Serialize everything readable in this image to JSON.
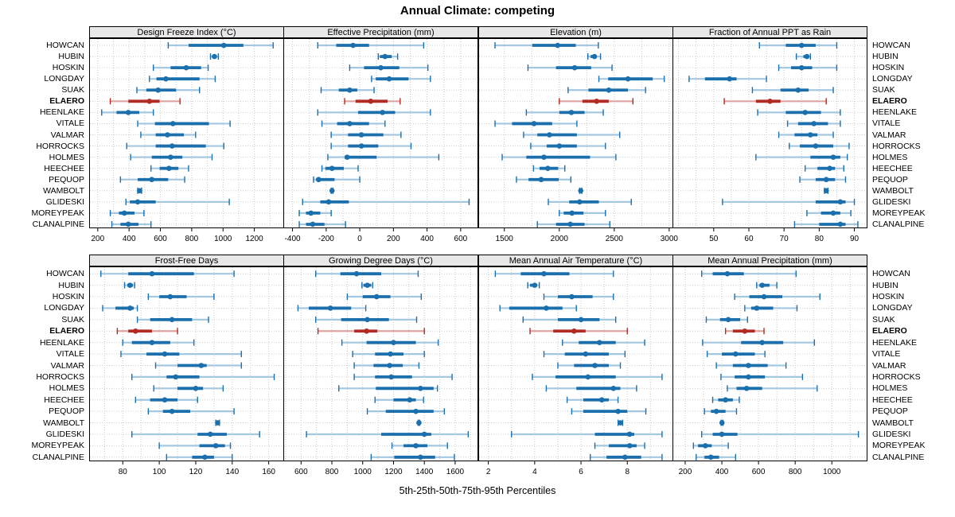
{
  "title": "Annual Climate: competing",
  "caption": "5th-25th-50th-75th-95th Percentiles",
  "percentile_labels": [
    "5th",
    "25th",
    "50th",
    "75th",
    "95th"
  ],
  "highlight_site": "ELAERO",
  "sites": [
    "HOWCAN",
    "HUBIN",
    "HOSKIN",
    "LONGDAY",
    "SUAK",
    "ELAERO",
    "HEENLAKE",
    "VITALE",
    "VALMAR",
    "HORROCKS",
    "HOLMES",
    "HEECHEE",
    "PEQUOP",
    "WAMBOLT",
    "GLIDESKI",
    "MOREYPEAK",
    "CLANALPINE"
  ],
  "colors": {
    "blue": "#1b6fad",
    "blue_light": "#a5c8e1",
    "red": "#b22a24",
    "red_light": "#dfa4a0",
    "strip_bg": "#e8e8e8",
    "grid": "#c8c8c8",
    "row_line": "#cfcfcf",
    "border": "#000000"
  },
  "chart_data": [
    {
      "type": "interval-dotplot",
      "title": "Design Freeze Index (°C)",
      "row": 0,
      "col": 0,
      "xlim": [
        150,
        1385
      ],
      "ticks": [
        200,
        400,
        600,
        800,
        1000,
        1200
      ],
      "minor_step": 100,
      "values": [
        [
          650,
          780,
          1005,
          1130,
          1320
        ],
        [
          920,
          930,
          945,
          960,
          970
        ],
        [
          555,
          665,
          765,
          860,
          905
        ],
        [
          530,
          575,
          635,
          850,
          950
        ],
        [
          450,
          510,
          585,
          700,
          850
        ],
        [
          280,
          395,
          530,
          595,
          725
        ],
        [
          225,
          320,
          395,
          465,
          555
        ],
        [
          455,
          565,
          680,
          910,
          1045
        ],
        [
          475,
          570,
          645,
          750,
          825
        ],
        [
          385,
          570,
          675,
          890,
          1005
        ],
        [
          410,
          545,
          665,
          740,
          930
        ],
        [
          540,
          595,
          655,
          715,
          780
        ],
        [
          345,
          455,
          545,
          650,
          755
        ],
        [
          455,
          462,
          467,
          472,
          480
        ],
        [
          380,
          405,
          455,
          570,
          1040
        ],
        [
          280,
          335,
          370,
          435,
          495
        ],
        [
          290,
          345,
          395,
          460,
          540
        ]
      ]
    },
    {
      "type": "interval-dotplot",
      "title": "Effective Precipitation (mm)",
      "row": 0,
      "col": 1,
      "xlim": [
        -450,
        700
      ],
      "ticks": [
        -400,
        -200,
        0,
        200,
        400,
        600
      ],
      "minor_step": 100,
      "values": [
        [
          -250,
          -140,
          -40,
          55,
          380
        ],
        [
          110,
          120,
          150,
          190,
          225
        ],
        [
          -60,
          25,
          125,
          235,
          405
        ],
        [
          70,
          95,
          175,
          290,
          420
        ],
        [
          -230,
          -125,
          -60,
          -15,
          85
        ],
        [
          -90,
          -25,
          65,
          165,
          240
        ],
        [
          -250,
          -10,
          135,
          210,
          420
        ],
        [
          -225,
          -135,
          -60,
          55,
          150
        ],
        [
          -170,
          -70,
          10,
          140,
          245
        ],
        [
          -170,
          -70,
          10,
          110,
          305
        ],
        [
          -190,
          -90,
          -75,
          100,
          470
        ],
        [
          -225,
          -205,
          -165,
          -95,
          -10
        ],
        [
          -275,
          -260,
          -245,
          -150,
          0
        ],
        [
          -170,
          -167,
          -165,
          -162,
          -160
        ],
        [
          -340,
          -235,
          -185,
          -65,
          650
        ],
        [
          -360,
          -320,
          -290,
          -235,
          -170
        ],
        [
          -360,
          -320,
          -280,
          -210,
          -85
        ]
      ]
    },
    {
      "type": "interval-dotplot",
      "title": "Elevation (m)",
      "row": 0,
      "col": 2,
      "xlim": [
        1270,
        3030
      ],
      "ticks": [
        1500,
        2000,
        2500,
        3000
      ],
      "minor_step": 250,
      "values": [
        [
          1415,
          1755,
          1985,
          2150,
          2355
        ],
        [
          2260,
          2285,
          2320,
          2340,
          2375
        ],
        [
          1715,
          1970,
          2140,
          2290,
          2480
        ],
        [
          2360,
          2445,
          2625,
          2850,
          2955
        ],
        [
          2080,
          2265,
          2450,
          2625,
          2785
        ],
        [
          2000,
          2210,
          2340,
          2450,
          2670
        ],
        [
          1700,
          2000,
          2110,
          2230,
          2400
        ],
        [
          1415,
          1570,
          1770,
          1935,
          2160
        ],
        [
          1675,
          1800,
          1910,
          2160,
          2550
        ],
        [
          1740,
          1885,
          2000,
          2160,
          2420
        ],
        [
          1480,
          1700,
          1860,
          2280,
          2515
        ],
        [
          1765,
          1820,
          1895,
          1990,
          2050
        ],
        [
          1610,
          1720,
          1835,
          1995,
          2105
        ],
        [
          2185,
          2190,
          2195,
          2200,
          2205
        ],
        [
          1900,
          2090,
          2185,
          2360,
          2655
        ],
        [
          2000,
          2040,
          2115,
          2220,
          2420
        ],
        [
          1800,
          1970,
          2100,
          2230,
          2460
        ]
      ]
    },
    {
      "type": "interval-dotplot",
      "title": "Fraction of Annual PPT as Rain",
      "row": 0,
      "col": 3,
      "xlim": [
        38.5,
        93.5
      ],
      "ticks": [
        50,
        60,
        70,
        80,
        90
      ],
      "minor_step": 5,
      "values": [
        [
          63,
          70.5,
          75,
          79,
          85
        ],
        [
          73.5,
          75.5,
          76.5,
          77,
          77.5
        ],
        [
          68.5,
          72,
          75,
          78,
          85
        ],
        [
          43,
          47.5,
          54.5,
          56.5,
          65
        ],
        [
          61,
          69,
          74,
          77,
          84
        ],
        [
          53,
          62,
          66,
          69,
          82
        ],
        [
          62.5,
          70.5,
          76,
          80.5,
          86
        ],
        [
          71,
          74,
          78.5,
          82.5,
          86
        ],
        [
          68.5,
          73,
          77.5,
          79.5,
          84
        ],
        [
          71.5,
          74.5,
          79,
          84,
          88.5
        ],
        [
          62,
          77.5,
          84,
          86,
          88
        ],
        [
          76,
          79.5,
          83,
          84.5,
          87
        ],
        [
          74.5,
          79,
          82,
          84.5,
          87.5
        ],
        [
          81.5,
          81.8,
          82,
          82.2,
          82.5
        ],
        [
          52.5,
          79,
          86,
          87.5,
          90
        ],
        [
          76.5,
          80.5,
          84,
          86,
          89
        ],
        [
          73,
          80,
          86,
          87.5,
          91
        ]
      ]
    },
    {
      "type": "interval-dotplot",
      "title": "Frost-Free Days",
      "row": 1,
      "col": 0,
      "xlim": [
        62,
        168
      ],
      "ticks": [
        80,
        100,
        120,
        140,
        160
      ],
      "minor_step": 10,
      "values": [
        [
          68,
          83,
          96,
          119,
          141
        ],
        [
          81,
          82.5,
          84,
          85.5,
          86.5
        ],
        [
          94,
          100,
          106,
          115,
          130
        ],
        [
          69,
          76,
          84,
          86,
          88
        ],
        [
          88,
          95,
          107,
          118,
          127
        ],
        [
          77,
          83,
          87,
          96,
          110
        ],
        [
          80,
          85,
          96,
          106,
          119
        ],
        [
          79,
          93,
          103,
          111,
          145
        ],
        [
          98,
          110,
          123,
          126,
          145
        ],
        [
          85,
          104,
          109,
          122,
          163
        ],
        [
          97,
          110,
          120,
          124,
          135
        ],
        [
          87,
          95,
          103,
          110,
          121
        ],
        [
          94,
          102,
          107,
          117,
          141
        ],
        [
          131,
          131.5,
          132,
          132.5,
          133
        ],
        [
          85,
          121,
          128,
          137,
          155
        ],
        [
          100,
          122,
          131,
          136,
          139
        ],
        [
          104,
          118,
          125,
          130,
          140
        ]
      ]
    },
    {
      "type": "interval-dotplot",
      "title": "Growing Degree Days (°C)",
      "row": 1,
      "col": 1,
      "xlim": [
        490,
        1745
      ],
      "ticks": [
        600,
        800,
        1000,
        1200,
        1400,
        1600
      ],
      "minor_step": 100,
      "values": [
        [
          695,
          855,
          960,
          1120,
          1360
        ],
        [
          995,
          1005,
          1030,
          1055,
          1065
        ],
        [
          900,
          1000,
          1090,
          1180,
          1380
        ],
        [
          580,
          650,
          790,
          925,
          1020
        ],
        [
          695,
          860,
          1030,
          1170,
          1350
        ],
        [
          710,
          945,
          1025,
          1095,
          1400
        ],
        [
          865,
          1025,
          1200,
          1345,
          1490
        ],
        [
          935,
          1080,
          1180,
          1265,
          1400
        ],
        [
          945,
          1070,
          1175,
          1260,
          1365
        ],
        [
          945,
          1080,
          1185,
          1320,
          1580
        ],
        [
          845,
          1085,
          1375,
          1460,
          1485
        ],
        [
          1080,
          1200,
          1305,
          1345,
          1395
        ],
        [
          1030,
          1150,
          1345,
          1460,
          1530
        ],
        [
          1360,
          1363,
          1365,
          1367,
          1370
        ],
        [
          635,
          1120,
          1400,
          1445,
          1685
        ],
        [
          1190,
          1265,
          1345,
          1420,
          1550
        ],
        [
          1055,
          1205,
          1375,
          1470,
          1595
        ]
      ]
    },
    {
      "type": "interval-dotplot",
      "title": "Mean Annual Air Temperature (°C)",
      "row": 1,
      "col": 2,
      "xlim": [
        1.6,
        9.95
      ],
      "ticks": [
        2,
        4,
        6,
        8
      ],
      "minor_step": 1,
      "values": [
        [
          2.3,
          3.4,
          4.4,
          5.5,
          7.4
        ],
        [
          3.7,
          3.8,
          4.0,
          4.1,
          4.2
        ],
        [
          4.4,
          5.0,
          5.6,
          6.5,
          7.4
        ],
        [
          2.5,
          2.9,
          4.5,
          5.2,
          5.8
        ],
        [
          3.5,
          5.0,
          6.0,
          6.8,
          7.5
        ],
        [
          3.8,
          4.8,
          5.7,
          6.2,
          8.0
        ],
        [
          5.2,
          5.9,
          6.8,
          7.5,
          8.75
        ],
        [
          4.4,
          5.3,
          6.2,
          7.2,
          7.9
        ],
        [
          5.0,
          5.7,
          6.6,
          7.2,
          7.7
        ],
        [
          3.9,
          4.9,
          6.3,
          7.5,
          9.5
        ],
        [
          4.5,
          5.8,
          7.4,
          7.7,
          8.4
        ],
        [
          5.4,
          6.1,
          6.9,
          7.2,
          7.6
        ],
        [
          5.6,
          6.1,
          7.6,
          8.0,
          8.8
        ],
        [
          7.6,
          7.65,
          7.7,
          7.75,
          7.8
        ],
        [
          3.0,
          6.6,
          8.1,
          8.3,
          9.5
        ],
        [
          6.6,
          7.2,
          8.1,
          8.4,
          8.75
        ],
        [
          6.4,
          7.1,
          7.9,
          8.6,
          9.5
        ]
      ]
    },
    {
      "type": "interval-dotplot",
      "title": "Mean Annual Precipitation (mm)",
      "row": 1,
      "col": 3,
      "xlim": [
        135,
        1190
      ],
      "ticks": [
        200,
        400,
        600,
        800,
        1000
      ],
      "minor_step": 100,
      "values": [
        [
          290,
          350,
          430,
          520,
          805
        ],
        [
          590,
          605,
          620,
          660,
          700
        ],
        [
          470,
          550,
          630,
          730,
          935
        ],
        [
          525,
          560,
          590,
          680,
          810
        ],
        [
          315,
          390,
          435,
          500,
          540
        ],
        [
          420,
          460,
          525,
          580,
          630
        ],
        [
          295,
          505,
          620,
          735,
          905
        ],
        [
          320,
          400,
          475,
          580,
          635
        ],
        [
          370,
          460,
          545,
          650,
          750
        ],
        [
          395,
          470,
          545,
          635,
          840
        ],
        [
          430,
          480,
          535,
          620,
          920
        ],
        [
          350,
          380,
          420,
          460,
          495
        ],
        [
          305,
          340,
          370,
          420,
          480
        ],
        [
          396,
          399,
          401,
          403,
          406
        ],
        [
          290,
          350,
          400,
          485,
          1145
        ],
        [
          245,
          270,
          310,
          345,
          435
        ],
        [
          260,
          305,
          340,
          385,
          475
        ]
      ]
    }
  ]
}
